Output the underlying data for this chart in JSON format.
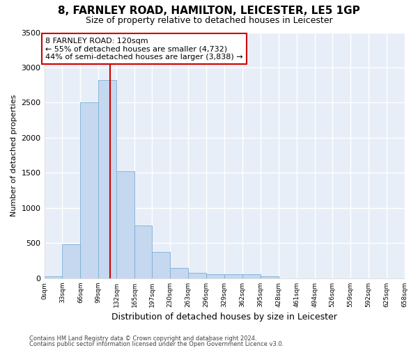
{
  "title": "8, FARNLEY ROAD, HAMILTON, LEICESTER, LE5 1GP",
  "subtitle": "Size of property relative to detached houses in Leicester",
  "xlabel": "Distribution of detached houses by size in Leicester",
  "ylabel": "Number of detached properties",
  "bin_edges": [
    0,
    33,
    66,
    99,
    132,
    165,
    197,
    230,
    263,
    296,
    329,
    362,
    395,
    428,
    461,
    494,
    526,
    559,
    592,
    625,
    658
  ],
  "bin_labels": [
    "0sqm",
    "33sqm",
    "66sqm",
    "99sqm",
    "132sqm",
    "165sqm",
    "197sqm",
    "230sqm",
    "263sqm",
    "296sqm",
    "329sqm",
    "362sqm",
    "395sqm",
    "428sqm",
    "461sqm",
    "494sqm",
    "526sqm",
    "559sqm",
    "592sqm",
    "625sqm",
    "658sqm"
  ],
  "bar_heights": [
    25,
    480,
    2500,
    2820,
    1520,
    750,
    380,
    145,
    80,
    55,
    55,
    55,
    30,
    0,
    0,
    0,
    0,
    0,
    0,
    0
  ],
  "bar_color": "#c5d8ef",
  "bar_edge_color": "#7aafd4",
  "bg_color": "#e8eef8",
  "grid_color": "#ffffff",
  "property_value": 120,
  "property_line_color": "#cc0000",
  "annotation_text": "8 FARNLEY ROAD: 120sqm\n← 55% of detached houses are smaller (4,732)\n44% of semi-detached houses are larger (3,838) →",
  "annotation_box_color": "#ffffff",
  "annotation_box_edge": "#cc0000",
  "ylim": [
    0,
    3500
  ],
  "yticks": [
    0,
    500,
    1000,
    1500,
    2000,
    2500,
    3000,
    3500
  ],
  "footer_line1": "Contains HM Land Registry data © Crown copyright and database right 2024.",
  "footer_line2": "Contains public sector information licensed under the Open Government Licence v3.0.",
  "fig_bg": "#ffffff"
}
